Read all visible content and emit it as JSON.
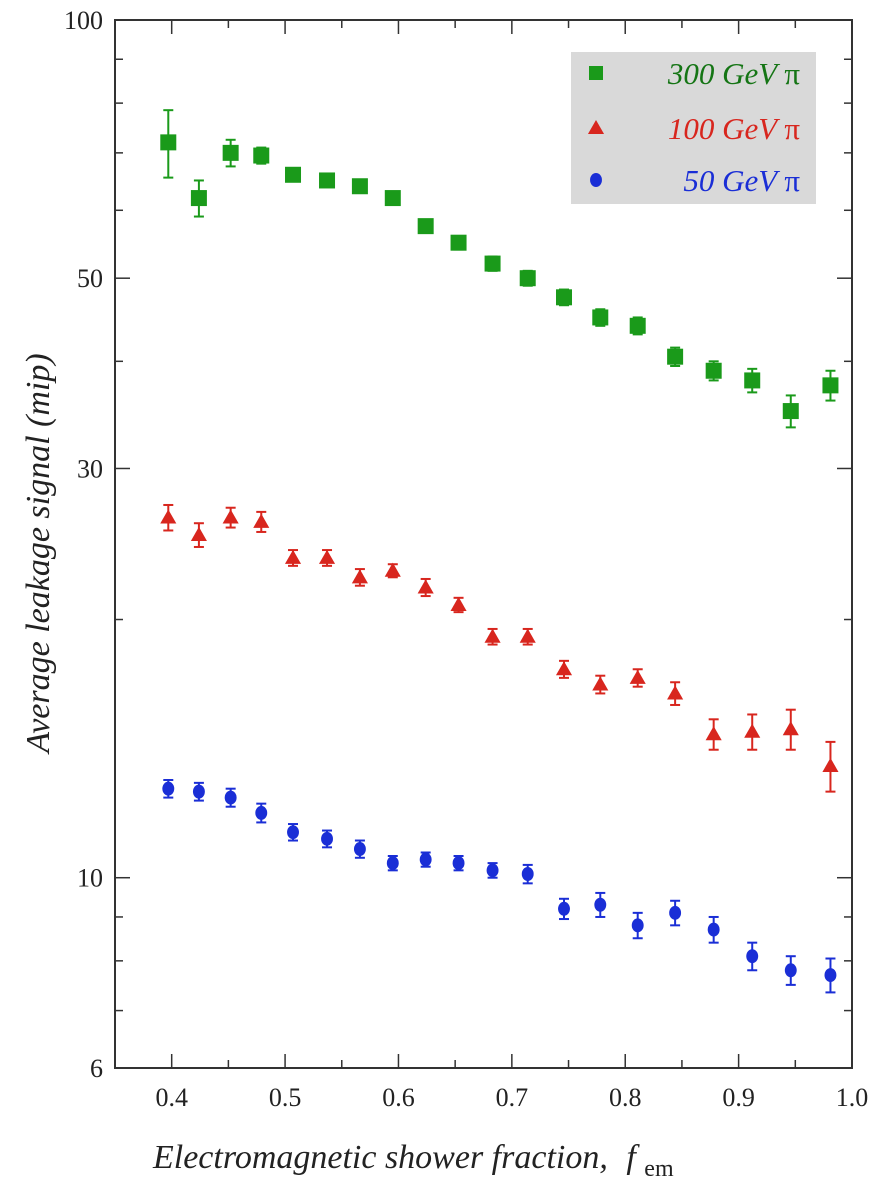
{
  "chart_data": {
    "type": "scatter",
    "xlabel": "Electromagnetic shower fraction,",
    "xlabel_var": "f",
    "xlabel_sub": "em",
    "ylabel": "Average leakage signal (mip)",
    "xlim": [
      0.35,
      1.0
    ],
    "ylim": [
      6,
      100
    ],
    "yscale": "log",
    "x_ticks": [
      "0.4",
      "0.5",
      "0.6",
      "0.7",
      "0.8",
      "0.9",
      "1.0"
    ],
    "y_ticks": [
      "6",
      "10",
      "30",
      "50",
      "100"
    ],
    "grid": false,
    "legend_position": "top-right",
    "series": [
      {
        "name": "300 GeV",
        "particle": "π",
        "color": "#1a9a1a",
        "text_color": "#157515",
        "marker": "square",
        "x": [
          0.397,
          0.424,
          0.452,
          0.479,
          0.507,
          0.537,
          0.566,
          0.595,
          0.624,
          0.653,
          0.683,
          0.714,
          0.746,
          0.778,
          0.811,
          0.844,
          0.878,
          0.912,
          0.946,
          0.981
        ],
        "y": [
          72,
          62,
          70,
          69.5,
          66,
          65,
          64,
          62,
          57.5,
          55,
          52,
          50,
          47.5,
          45,
          44,
          40.5,
          39,
          38,
          35,
          37.5
        ],
        "err": [
          6.5,
          3,
          2.5,
          1.5,
          1,
          1,
          1,
          1,
          1,
          1,
          1,
          1,
          1,
          1,
          1,
          1,
          1,
          1.2,
          1.5,
          1.5
        ]
      },
      {
        "name": "100 GeV",
        "particle": "π",
        "color": "#d8261e",
        "text_color": "#d8261e",
        "marker": "triangle",
        "x": [
          0.397,
          0.424,
          0.452,
          0.479,
          0.507,
          0.537,
          0.566,
          0.595,
          0.624,
          0.653,
          0.683,
          0.714,
          0.746,
          0.778,
          0.811,
          0.844,
          0.878,
          0.912,
          0.946,
          0.981
        ],
        "y": [
          26.3,
          25.1,
          26.3,
          26,
          23.6,
          23.6,
          22.4,
          22.8,
          21.8,
          20.8,
          19.1,
          19.1,
          17.5,
          16.8,
          17.1,
          16.4,
          14.7,
          14.8,
          14.9,
          13.5
        ],
        "err": [
          0.9,
          0.8,
          0.7,
          0.7,
          0.5,
          0.5,
          0.5,
          0.4,
          0.5,
          0.4,
          0.4,
          0.4,
          0.4,
          0.4,
          0.4,
          0.5,
          0.6,
          0.7,
          0.8,
          0.9
        ]
      },
      {
        "name": "50 GeV",
        "particle": "π",
        "color": "#1a2ed6",
        "text_color": "#1a2ed6",
        "marker": "circle",
        "x": [
          0.397,
          0.424,
          0.452,
          0.479,
          0.507,
          0.537,
          0.566,
          0.595,
          0.624,
          0.653,
          0.683,
          0.714,
          0.746,
          0.778,
          0.811,
          0.844,
          0.878,
          0.912,
          0.946,
          0.981
        ],
        "y": [
          12.7,
          12.6,
          12.4,
          11.9,
          11.3,
          11.1,
          10.8,
          10.4,
          10.5,
          10.4,
          10.2,
          10.1,
          9.2,
          9.3,
          8.8,
          9.1,
          8.7,
          8.1,
          7.8,
          7.7
        ],
        "err": [
          0.3,
          0.3,
          0.3,
          0.3,
          0.25,
          0.25,
          0.25,
          0.2,
          0.2,
          0.2,
          0.2,
          0.25,
          0.25,
          0.3,
          0.3,
          0.3,
          0.3,
          0.3,
          0.3,
          0.35
        ]
      }
    ]
  }
}
